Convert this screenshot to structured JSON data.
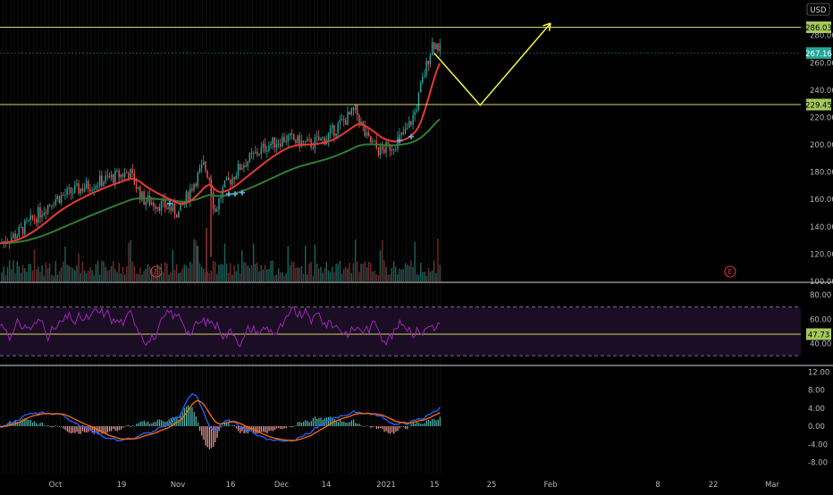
{
  "currency_label": "USD",
  "colors": {
    "background": "#000000",
    "axis_text": "#b2b5be",
    "grid_line": "#1a1a1a",
    "pane_separator": "#d1d4dc",
    "up_candle": "#26a69a",
    "down_candle": "#ef5350",
    "ema_fast": "#e53935",
    "ema_slow": "#2e7d32",
    "hline": "#d4d66a",
    "projection": "#f5f542",
    "rsi_line": "#9c27b0",
    "rsi_band": "#1a0d24",
    "macd_line": "#2962ff",
    "signal_line": "#ff6d00",
    "current_price_label": "#26a69a",
    "level_label": "#a5c85a",
    "earnings_marker": "#e53935"
  },
  "price_pane": {
    "y_ticks": [
      "280.00",
      "260.00",
      "240.00",
      "220.00",
      "200.00",
      "180.00",
      "160.00",
      "140.00",
      "120.00",
      "100.00"
    ],
    "y_tick_values": [
      280,
      260,
      240,
      220,
      200,
      180,
      160,
      140,
      120,
      100
    ],
    "horizontal_levels": [
      {
        "value": 286.03,
        "label": "286.03"
      },
      {
        "value": 229.45,
        "label": "229.45"
      }
    ],
    "current_price": {
      "value": 267.16,
      "label": "267.16"
    },
    "earnings_marker_label": "E",
    "projection_path": [
      {
        "date": "2021-01-15",
        "price": 267
      },
      {
        "date": "2021-01-23",
        "price": 229
      },
      {
        "date": "2021-02-01",
        "price": 289
      }
    ]
  },
  "rsi_pane": {
    "y_ticks": [
      "80.00",
      "60.00",
      "40.00"
    ],
    "y_tick_values": [
      80,
      60,
      40
    ],
    "upper_band": 70,
    "lower_band": 30,
    "current_value": {
      "value": 47.73,
      "label": "47.73"
    }
  },
  "macd_pane": {
    "y_ticks": [
      "12.00",
      "8.00",
      "4.00",
      "0.00",
      "-4.00",
      "-8.00"
    ],
    "y_tick_values": [
      12,
      8,
      4,
      0,
      -4,
      -8
    ]
  },
  "x_axis": {
    "labels": [
      "Oct",
      "19",
      "Nov",
      "16",
      "Dec",
      "14",
      "2021",
      "15",
      "25",
      "Feb",
      "8",
      "22",
      "Mar"
    ]
  }
}
